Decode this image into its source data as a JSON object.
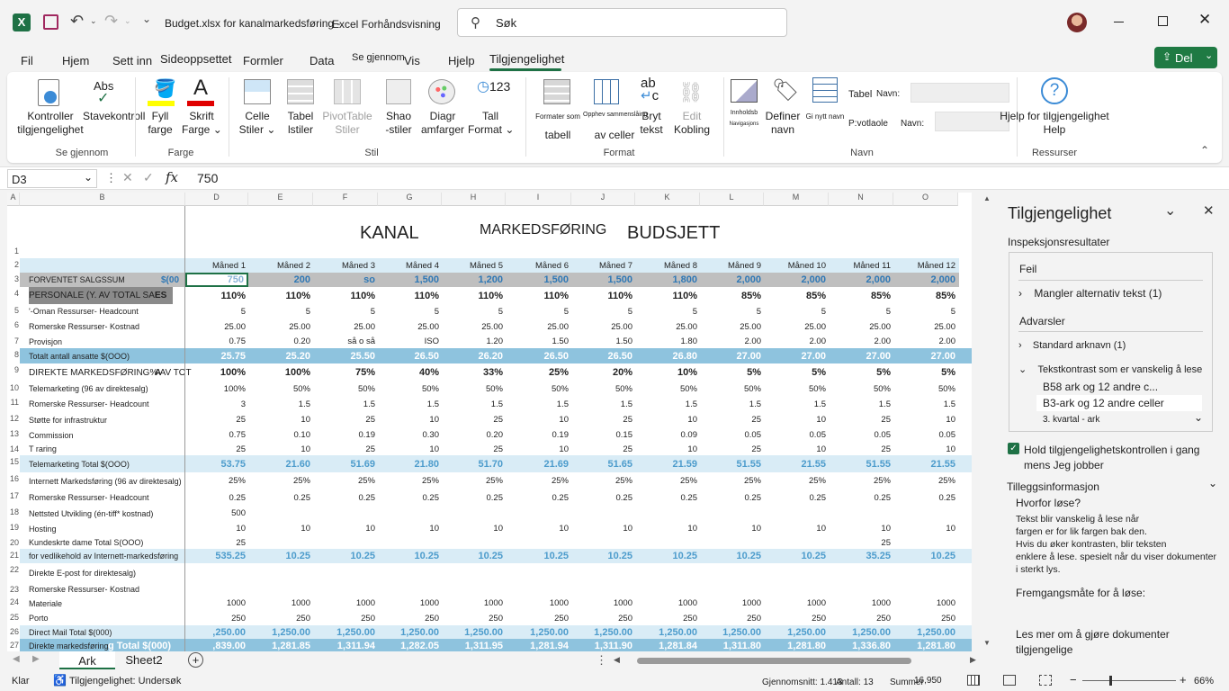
{
  "window": {
    "filename": "Budget.xlsx for kanalmarkedsføring -",
    "app": "Excel Forhåndsvisning",
    "search_placeholder": "Søk",
    "share_label": "Del"
  },
  "menu": [
    "Fil",
    "Hjem",
    "Sett inn",
    "Sideoppsettet",
    "Formler",
    "Data",
    "Se gjennom",
    "Vis",
    "Hjelp",
    "Tilgjengelighet"
  ],
  "ribbon": {
    "kontroller": [
      "Kontroller",
      "tilgjengelighet"
    ],
    "stave": [
      "Abs",
      "Stavekontroll"
    ],
    "group_segjennom": "Se gjennom",
    "fyll": [
      "Fyll",
      "farge"
    ],
    "skrift": [
      "Skrift",
      "Farge"
    ],
    "group_farge": "Farge",
    "celle": [
      "Celle",
      "Stiler"
    ],
    "tabell": [
      "Tabel",
      "lstiler"
    ],
    "pivot": [
      "PivotTable",
      "Stiler"
    ],
    "shape": [
      "Shao",
      "-stiler"
    ],
    "diagram": [
      "Diagr",
      "amfarger"
    ],
    "tall": [
      "Tall",
      "Format"
    ],
    "group_stil": "Stil",
    "formater": [
      "Formater som",
      "tabell"
    ],
    "opphev": [
      "Opphev sammenslåing",
      "av celler"
    ],
    "bryt": [
      "Bryt",
      "tekst"
    ],
    "edit": [
      "Edit",
      "Kobling"
    ],
    "group_format": "Format",
    "innhold": [
      "Innholdsb",
      "Navigasjons"
    ],
    "definer": [
      "Definer",
      "navn"
    ],
    "gi": "Gi nytt navn",
    "tabell_navn": "Tabel",
    "navn1": "Navn:",
    "pivot_navn": "P:votlaole",
    "navn2": "Navn:",
    "group_navn": "Navn",
    "hjelp": [
      "Hjelp for tilgjengelighet",
      "Help"
    ],
    "group_ressurser": "Ressurser"
  },
  "formula": {
    "namebox": "D3",
    "value": "750"
  },
  "sheet": {
    "title1": "KANAL",
    "title2": "MARKEDSFØRING",
    "title3": "BUDSJETT",
    "cols": [
      "A",
      "B",
      "D",
      "E",
      "F",
      "G",
      "H",
      "I",
      "J",
      "K",
      "L",
      "M",
      "N",
      "O"
    ],
    "months": [
      "Måned 1",
      "Måned 2",
      "Måned 3",
      "Måned 4",
      "Måned 5",
      "Måned 6",
      "Måned 7",
      "Måned 8",
      "Måned 9",
      "Måned 10",
      "Måned 11",
      "Måned 12"
    ],
    "rows": [
      {
        "n": "1"
      },
      {
        "n": "2"
      },
      {
        "n": "3",
        "label": "FORVENTET SALGSSUM",
        "extra": "$(00",
        "style": "gray",
        "vals": [
          "750",
          "200",
          "so",
          "1,500",
          "1,200",
          "1,500",
          "1,500",
          "1,800",
          "2,000",
          "2,000",
          "2,000",
          "2,000"
        ]
      },
      {
        "n": "4",
        "label": "PERSONALE (Y. AV TOTAL SAL",
        "extra": "ES",
        "style": "boldrow",
        "vals": [
          "110%",
          "110%",
          "110%",
          "110%",
          "110%",
          "110%",
          "110%",
          "110%",
          "85%",
          "85%",
          "85%",
          "85%"
        ]
      },
      {
        "n": "5",
        "label": "'-Oman Ressurser-    Headcount",
        "vals": [
          "5",
          "5",
          "5",
          "5",
          "5",
          "5",
          "5",
          "5",
          "5",
          "5",
          "5",
          "5"
        ]
      },
      {
        "n": "6",
        "label": "Romerske  Ressurser-    Kostnad",
        "vals": [
          "25.00",
          "25.00",
          "25.00",
          "25.00",
          "25.00",
          "25.00",
          "25.00",
          "25.00",
          "25.00",
          "25.00",
          "25.00",
          "25.00"
        ]
      },
      {
        "n": "7",
        "label": "Provisjon",
        "vals": [
          "0.75",
          "0.20",
          "så o så",
          "ISO",
          "1.20",
          "1.50",
          "1.50",
          "1.80",
          "2.00",
          "2.00",
          "2.00",
          "2.00"
        ]
      },
      {
        "n": "8",
        "label": "Totalt antall ansatte $(OOO)",
        "style": "blue",
        "vals": [
          "25.75",
          "25.20",
          "25.50",
          "26.50",
          "26.20",
          "26.50",
          "26.50",
          "26.80",
          "27.00",
          "27.00",
          "27.00",
          "27.00"
        ]
      },
      {
        "n": "9",
        "label": "DIREKTE MARKEDSFØRING% AV TOT",
        "extra": "A",
        "style": "boldrow",
        "vals": [
          "100%",
          "100%",
          "75%",
          "40%",
          "33%",
          "25%",
          "20%",
          "10%",
          "5%",
          "5%",
          "5%",
          "5%"
        ]
      },
      {
        "n": "10",
        "label": "Telemarketing (96 av direktesalg)",
        "vals": [
          "100%",
          "50%",
          "50%",
          "50%",
          "50%",
          "50%",
          "50%",
          "50%",
          "50%",
          "50%",
          "50%",
          "50%"
        ]
      },
      {
        "n": "11",
        "label": "Romerske  Ressurser-    Headcount",
        "vals": [
          "3",
          "1.5",
          "1.5",
          "1.5",
          "1.5",
          "1.5",
          "1.5",
          "1.5",
          "1.5",
          "1.5",
          "1.5",
          "1.5"
        ]
      },
      {
        "n": "12",
        "label": "Støtte for infrastruktur",
        "vals": [
          "25",
          "10",
          "25",
          "10",
          "25",
          "10",
          "25",
          "10",
          "25",
          "10",
          "25",
          "10"
        ]
      },
      {
        "n": "13",
        "label": "Commission",
        "vals": [
          "0.75",
          "0.10",
          "0.19",
          "0.30",
          "0.20",
          "0.19",
          "0.15",
          "0.09",
          "0.05",
          "0.05",
          "0.05",
          "0.05"
        ]
      },
      {
        "n": "14",
        "label": "T raring",
        "vals": [
          "25",
          "10",
          "25",
          "10",
          "25",
          "10",
          "25",
          "10",
          "25",
          "10",
          "25",
          "10"
        ]
      },
      {
        "n": "15",
        "label": "Telemarketing Total $(OOO)",
        "style": "lblue",
        "vals": [
          "53.75",
          "21.60",
          "51.69",
          "21.80",
          "51.70",
          "21.69",
          "51.65",
          "21.59",
          "51.55",
          "21.55",
          "51.55",
          "21.55"
        ]
      },
      {
        "n": "16",
        "label": "Internett  Markedsføring (96 av direktesalg)",
        "vals": [
          "25%",
          "25%",
          "25%",
          "25%",
          "25%",
          "25%",
          "25%",
          "25%",
          "25%",
          "25%",
          "25%",
          "25%"
        ]
      },
      {
        "n": "17",
        "label": "Romerske  Ressurser-    Headcount",
        "vals": [
          "0.25",
          "0.25",
          "0.25",
          "0.25",
          "0.25",
          "0.25",
          "0.25",
          "0.25",
          "0.25",
          "0.25",
          "0.25",
          "0.25"
        ]
      },
      {
        "n": "18",
        "label": "Nettsted Utvikling (én-tiff* kostnad)",
        "vals": [
          "500",
          "",
          "",
          "",
          "",
          "",
          "",
          "",
          "",
          "",
          "",
          ""
        ]
      },
      {
        "n": "19",
        "label": "Hosting",
        "vals": [
          "10",
          "10",
          "10",
          "10",
          "10",
          "10",
          "10",
          "10",
          "10",
          "10",
          "10",
          "10"
        ]
      },
      {
        "n": "20",
        "label": "Kundeskrte dame    Total S(OOO)",
        "vals": [
          "25",
          "",
          "",
          "",
          "",
          "",
          "",
          "",
          "",
          "",
          "25",
          ""
        ]
      },
      {
        "n": "21",
        "label": "for vedlikehold av Internett-markedsføring",
        "style": "lblue",
        "vals": [
          "535.25",
          "10.25",
          "10.25",
          "10.25",
          "10.25",
          "10.25",
          "10.25",
          "10.25",
          "10.25",
          "10.25",
          "35.25",
          "10.25"
        ]
      },
      {
        "n": "22",
        "label": "Direkte  E-post for direktesalg)",
        "vals": [
          "",
          "",
          "",
          "",
          "",
          "",
          "",
          "",
          "",
          "",
          "",
          ""
        ]
      },
      {
        "n": "23",
        "label": "Romerske  Ressurser-    Kostnad",
        "vals": [
          "",
          "",
          "",
          "",
          "",
          "",
          "",
          "",
          "",
          "",
          "",
          ""
        ]
      },
      {
        "n": "24",
        "label": "Materiale",
        "vals": [
          "1000",
          "1000",
          "1000",
          "1000",
          "1000",
          "1000",
          "1000",
          "1000",
          "1000",
          "1000",
          "1000",
          "1000"
        ]
      },
      {
        "n": "25",
        "label": "Porto",
        "vals": [
          "250",
          "250",
          "250",
          "250",
          "250",
          "250",
          "250",
          "250",
          "250",
          "250",
          "250",
          "250"
        ]
      },
      {
        "n": "26",
        "label": "Direct Mail Total $(000)",
        "style": "lblue",
        "vals": [
          ",250.00",
          "1,250.00",
          "1,250.00",
          "1,250.00",
          "1,250.00",
          "1,250.00",
          "1,250.00",
          "1,250.00",
          "1,250.00",
          "1,250.00",
          "1,250.00",
          "1,250.00"
        ]
      },
      {
        "n": "27",
        "label": "Direkte markedsføring",
        "extra": "g Total $(000)",
        "style": "blue",
        "vals": [
          ",839.00",
          "1,281.85",
          "1,311.94",
          "1,282.05",
          "1,311.95",
          "1,281.94",
          "1,311.90",
          "1,281.84",
          "1,311.80",
          "1,281.80",
          "1,336.80",
          "1,281.80"
        ]
      }
    ]
  },
  "pane": {
    "title": "Tilgjengelighet",
    "subtitle": "Inspeksjonsresultater",
    "errors": "Feil",
    "err1": "Mangler alternativ tekst (1)",
    "warnings": "Advarsler",
    "warn1": "Standard arknavn (1)",
    "warn2": "Tekstkontrast som er vanskelig å lese",
    "sub1": "B58 ark og 12 andre c...",
    "sub2": "B3-ark og 12 andre celler",
    "sub3": "3. kvartal - ark",
    "checkbox": "Hold tilgjengelighetskontrollen i gang mens Jeg jobber",
    "extra_title": "Tilleggsinformasjon",
    "why": "Hvorfor løse?",
    "why_text": [
      "Tekst blir vanskelig å lese når",
      "fargen er for lik fargen bak den.",
      "Hvis du øker kontrasten, blir teksten",
      "enklere å lese. spesielt når du viser dokumenter",
      "i sterkt lys."
    ],
    "how": "Fremgangsmåte for å løse:",
    "learn": [
      "Les mer om å gjøre dokumenter",
      "tilgjengelige"
    ]
  },
  "tabs": {
    "ark": "Ark",
    "sheet2": "Sheet2"
  },
  "status": {
    "ready": "Klar",
    "access": "Tilgjengelighet: Undersøk",
    "avg": "Gjennomsnitt: 1.413",
    "count": "Antall: 13",
    "sum": "Summer",
    "sumval": "16,950",
    "zoom": "66%"
  },
  "colors": {
    "excel_green": "#1e7145",
    "share_green": "#1f7a43",
    "blue_band": "#8ec3de",
    "light_band": "#d9ecf6"
  }
}
